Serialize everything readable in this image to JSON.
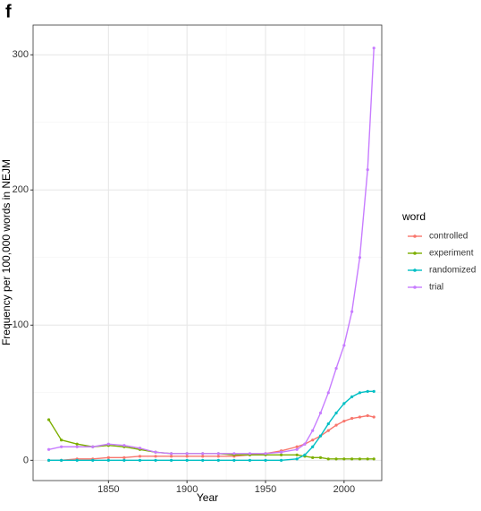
{
  "chart_data": {
    "type": "line",
    "panel_label": "f",
    "x_label": "Year",
    "y_label": "Frequency per 100,000 words in NEJM",
    "legend_title": "word",
    "x": [
      1812,
      1820,
      1830,
      1840,
      1850,
      1860,
      1870,
      1880,
      1890,
      1900,
      1910,
      1920,
      1930,
      1940,
      1950,
      1960,
      1970,
      1975,
      1980,
      1985,
      1990,
      1995,
      2000,
      2005,
      2010,
      2015,
      2019
    ],
    "series": [
      {
        "name": "controlled",
        "color": "#F8766D",
        "values": [
          0,
          0,
          1,
          1,
          2,
          2,
          3,
          3,
          3,
          3,
          3,
          3,
          3,
          4,
          5,
          7,
          10,
          12,
          15,
          18,
          22,
          26,
          29,
          31,
          32,
          33,
          32
        ]
      },
      {
        "name": "experiment",
        "color": "#7CAE00",
        "values": [
          30,
          15,
          12,
          10,
          11,
          10,
          8,
          6,
          5,
          5,
          5,
          5,
          4,
          4,
          4,
          4,
          4,
          3,
          2,
          2,
          1,
          1,
          1,
          1,
          1,
          1,
          1
        ]
      },
      {
        "name": "randomized",
        "color": "#00BFC4",
        "values": [
          0,
          0,
          0,
          0,
          0,
          0,
          0,
          0,
          0,
          0,
          0,
          0,
          0,
          0,
          0,
          0,
          1,
          4,
          10,
          18,
          27,
          35,
          42,
          47,
          50,
          51,
          51
        ]
      },
      {
        "name": "trial",
        "color": "#C77CFF",
        "values": [
          8,
          10,
          10,
          10,
          12,
          11,
          9,
          6,
          5,
          5,
          5,
          5,
          5,
          5,
          5,
          6,
          8,
          12,
          22,
          35,
          50,
          68,
          85,
          110,
          150,
          215,
          305
        ]
      }
    ],
    "xlim": [
      1802,
      2024
    ],
    "ylim": [
      -15,
      322
    ],
    "xticks": [
      1850,
      1900,
      1950,
      2000
    ],
    "yticks": [
      0,
      100,
      200,
      300
    ],
    "grid": true
  }
}
